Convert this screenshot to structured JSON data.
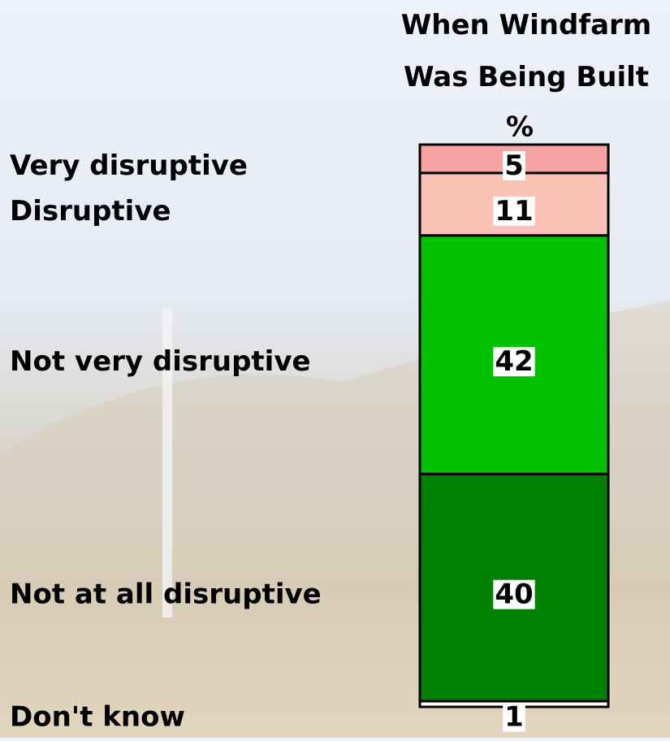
{
  "chart_data": {
    "type": "stacked-bar",
    "title": "When Windfarm Was Being Built",
    "subtitle": "%",
    "categories": [
      "Very disruptive",
      "Disruptive",
      "Not very disruptive",
      "Not at all disruptive",
      "Don't know"
    ],
    "values": [
      5,
      11,
      42,
      40,
      1
    ],
    "colors": [
      "#f5a3a3",
      "#fbc0b6",
      "#00c000",
      "#008000",
      "#ffffff"
    ]
  }
}
